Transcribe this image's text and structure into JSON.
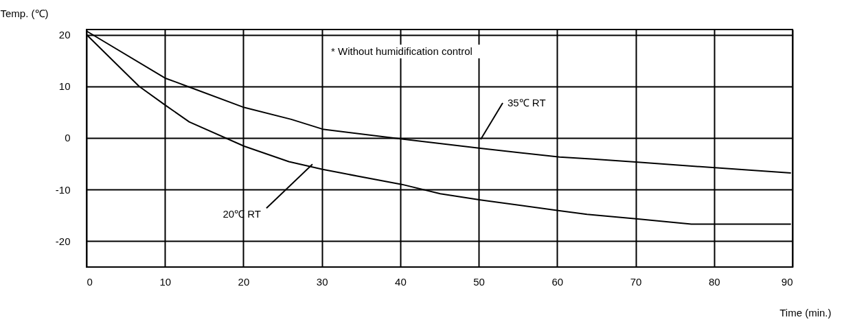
{
  "chart_data": {
    "type": "line",
    "xlabel": "Time (min.)",
    "ylabel": "Temp. (℃)",
    "xlim": [
      0,
      90
    ],
    "xticks": [
      0,
      10,
      20,
      30,
      40,
      50,
      60,
      70,
      80,
      90
    ],
    "ylim": [
      -25,
      21
    ],
    "yticks": [
      -20,
      -10,
      0,
      10,
      20
    ],
    "grid": true,
    "marker": "none",
    "line_style": "solid",
    "series": [
      {
        "color": "#000000",
        "x": [
          0,
          10,
          13.2,
          20.1,
          26.1,
          30.1,
          40.2,
          50.2,
          60.3,
          64.6,
          70.3,
          80.4,
          89.8
        ],
        "values": [
          20.7,
          11.6,
          9.8,
          5.9,
          3.6,
          1.7,
          -0.2,
          -2.0,
          -3.7,
          -4.1,
          -4.7,
          -5.8,
          -6.8
        ]
      },
      {
        "color": "#000000",
        "x": [
          0,
          6.7,
          10,
          13.1,
          20.1,
          25.8,
          30.1,
          32.5,
          40.2,
          45.1,
          50.2,
          60.3,
          63.8,
          70.3,
          77.1,
          89.8
        ],
        "values": [
          20,
          10,
          6.4,
          3.1,
          -1.6,
          -4.6,
          -6.1,
          -6.8,
          -9.0,
          -10.8,
          -12.0,
          -14.1,
          -14.8,
          -15.7,
          -16.7,
          -16.7
        ]
      }
    ],
    "annotations": [
      "* Without humidification control",
      "35℃ RT",
      {
        "text": "20℃ RT",
        "x": 28.8,
        "y": -5.1
      }
    ]
  }
}
